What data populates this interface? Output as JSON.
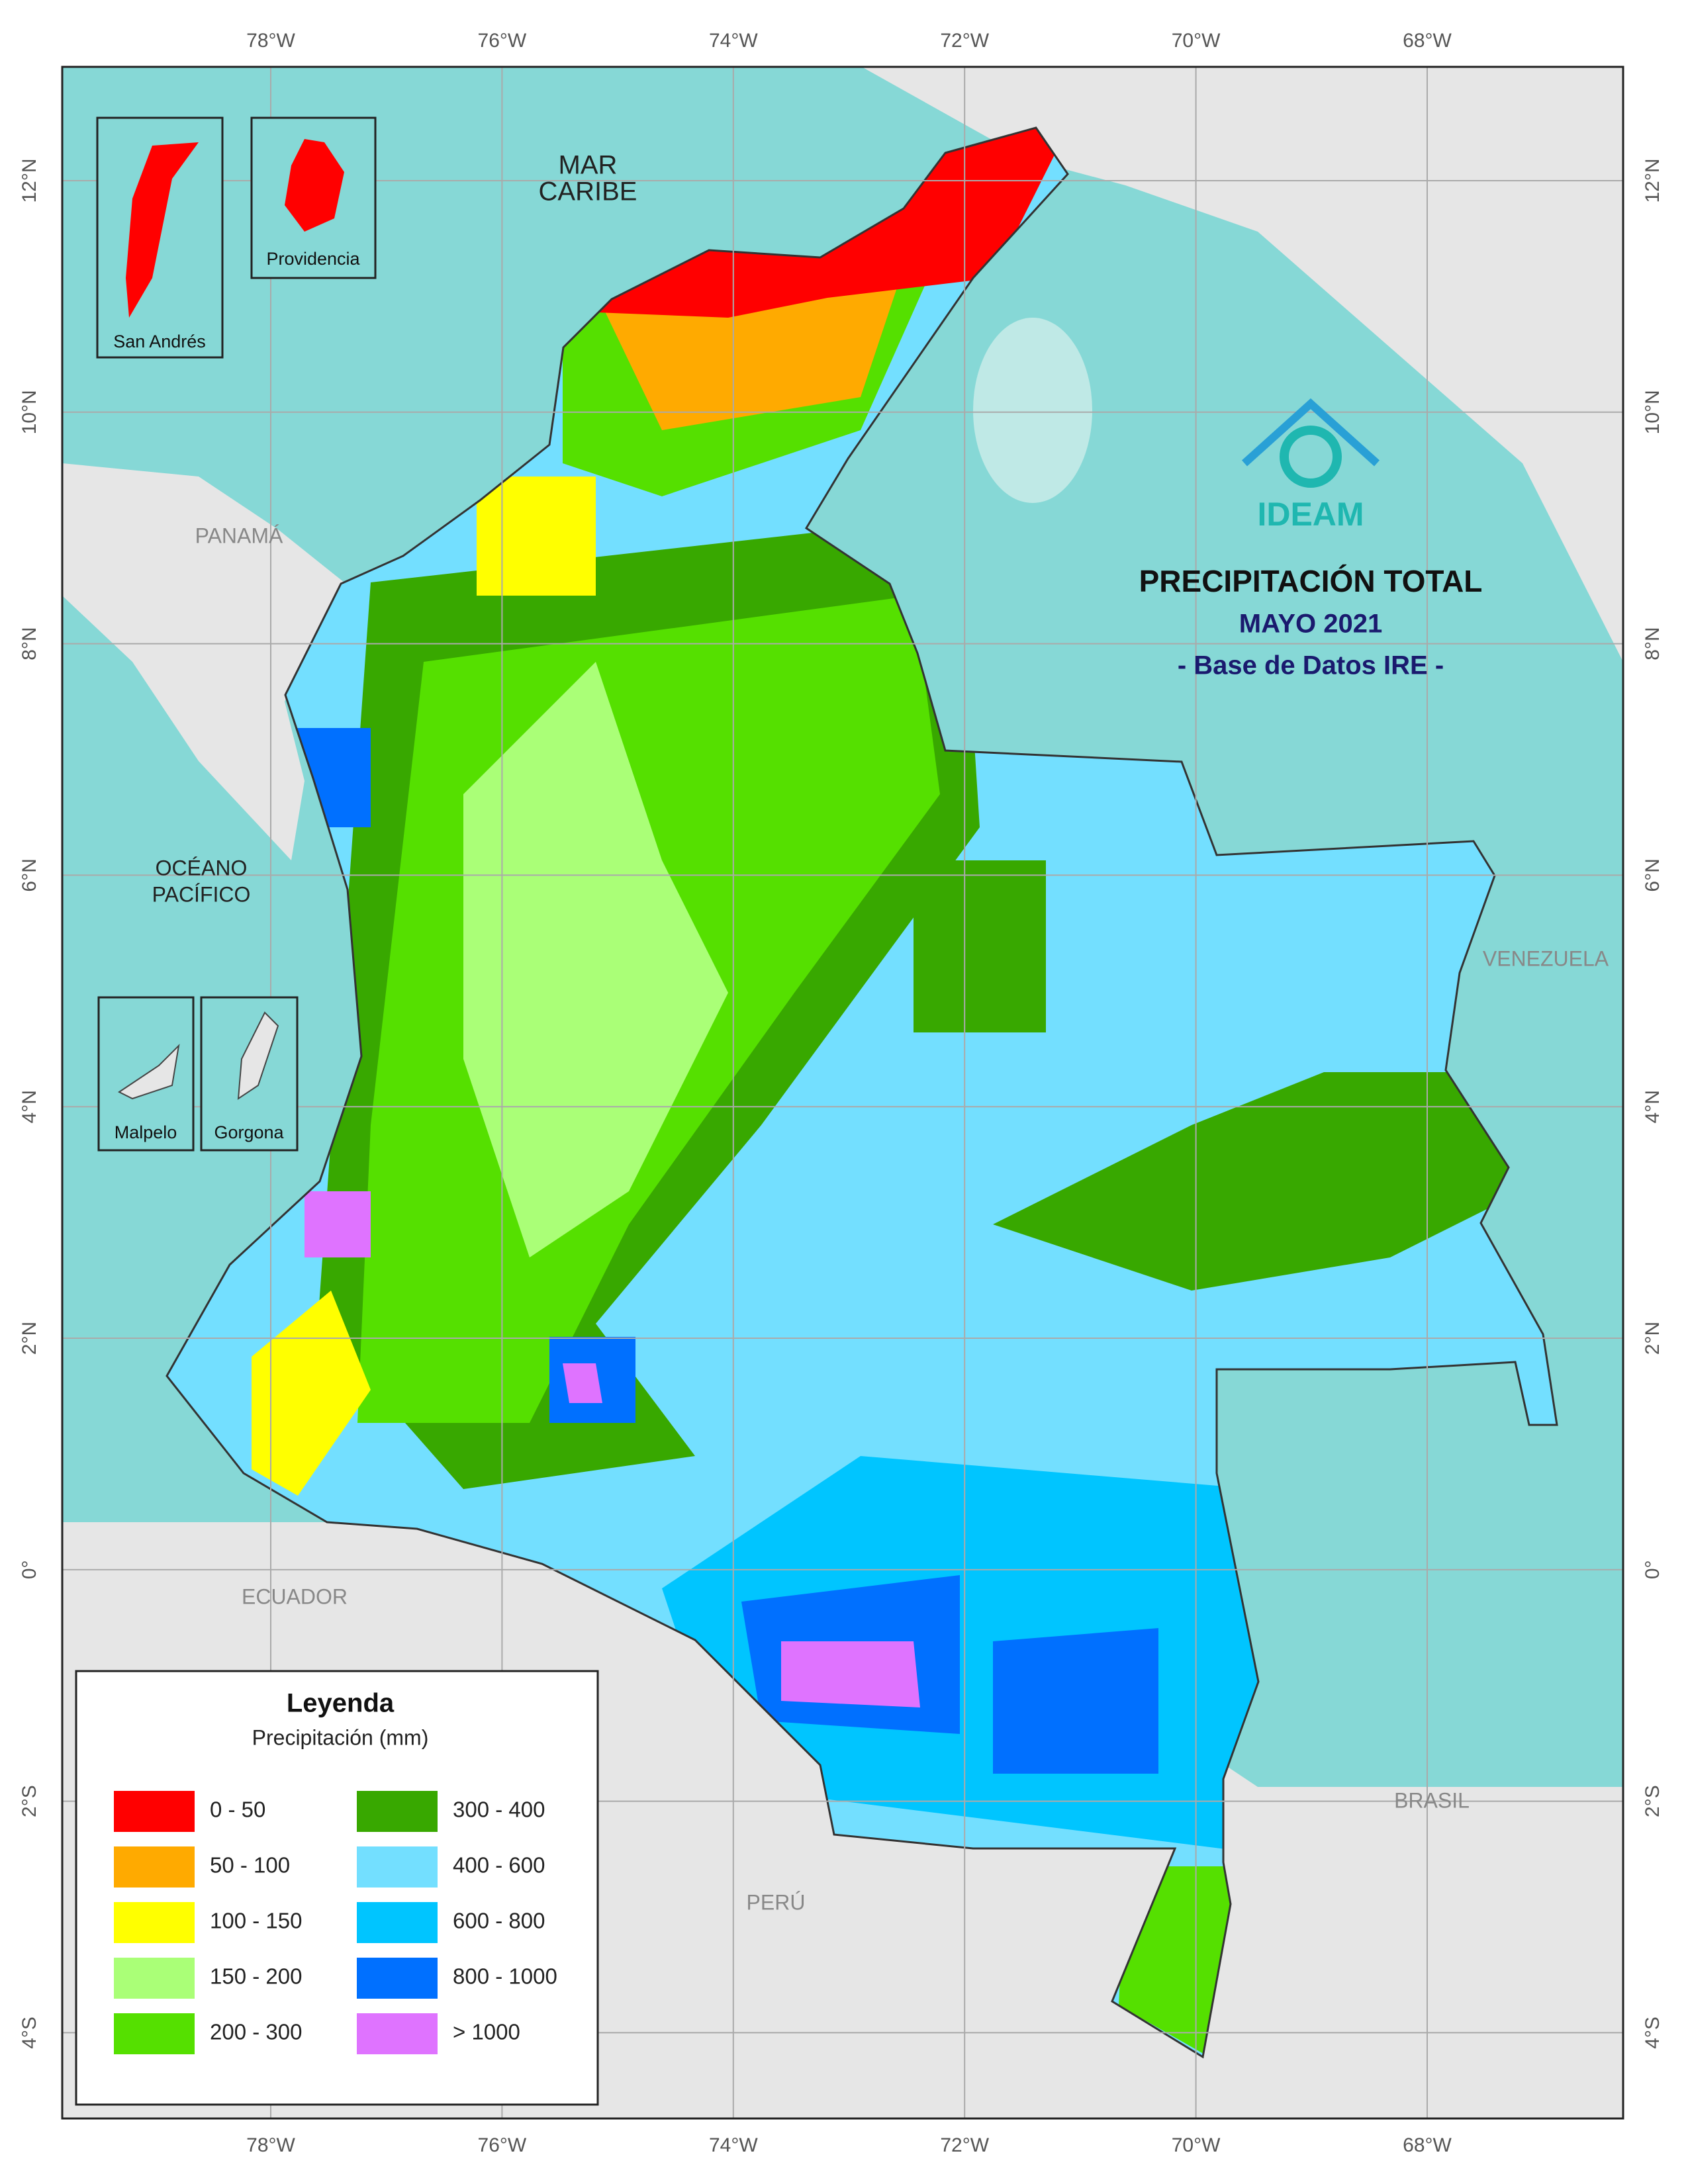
{
  "map": {
    "title": "PRECIPITACIÓN TOTAL",
    "subtitle": "MAYO 2021",
    "source": "- Base de Datos IRE -",
    "logo": "IDEAM"
  },
  "graticule": {
    "longitudes": [
      "78°W",
      "76°W",
      "74°W",
      "72°W",
      "70°W",
      "68°W"
    ],
    "latitudes": [
      "12°N",
      "10°N",
      "8°N",
      "6°N",
      "4°N",
      "2°N",
      "0°",
      "2°S",
      "4°S"
    ]
  },
  "places": [
    {
      "lines": [
        "MAR",
        "CARIBE"
      ]
    },
    {
      "lines": [
        "PANAMÁ"
      ]
    },
    {
      "lines": [
        "OCÉANO",
        "PACÍFICO"
      ]
    },
    {
      "lines": [
        "VENEZUELA"
      ]
    },
    {
      "lines": [
        "ECUADOR"
      ]
    },
    {
      "lines": [
        "BRASIL"
      ]
    },
    {
      "lines": [
        "PERÚ"
      ]
    }
  ],
  "insets": [
    "San Andrés",
    "Providencia",
    "Malpelo",
    "Gorgona"
  ],
  "legend": {
    "title": "Leyenda",
    "subtitle": "Precipitación (mm)",
    "items": [
      {
        "label": "0 - 50",
        "color": "#ff0000"
      },
      {
        "label": "50 - 100",
        "color": "#ffaa00"
      },
      {
        "label": "100 - 150",
        "color": "#ffff00"
      },
      {
        "label": "150 - 200",
        "color": "#aaff77"
      },
      {
        "label": "200 - 300",
        "color": "#55e000"
      },
      {
        "label": "300 - 400",
        "color": "#38a800"
      },
      {
        "label": "400 - 600",
        "color": "#73dfff"
      },
      {
        "label": "600 - 800",
        "color": "#00c5ff"
      },
      {
        "label": "800 - 1000",
        "color": "#0070ff"
      },
      {
        "label": "> 1000",
        "color": "#df73ff"
      }
    ]
  }
}
